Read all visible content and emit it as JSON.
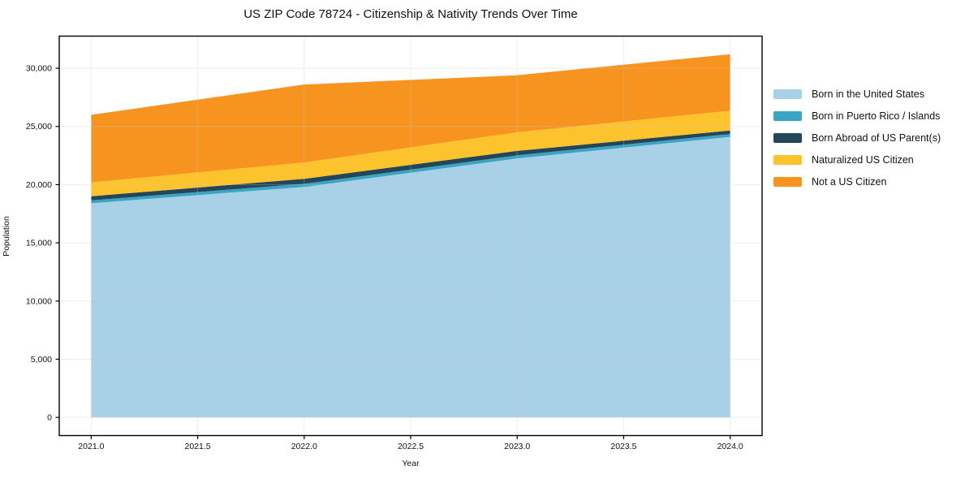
{
  "title": "US ZIP Code 78724 - Citizenship & Nativity Trends Over Time",
  "chart_data": {
    "type": "area",
    "stacked": true,
    "title": "US ZIP Code 78724 - Citizenship & Nativity Trends Over Time",
    "xlabel": "Year",
    "ylabel": "Population",
    "x": [
      2021,
      2022,
      2023,
      2024
    ],
    "series": [
      {
        "name": "Born in the United States",
        "color": "#a8d1e7",
        "values": [
          18400,
          19800,
          22250,
          24100
        ]
      },
      {
        "name": "Born in Puerto Rico / Islands",
        "color": "#3aa5c2",
        "values": [
          250,
          270,
          270,
          250
        ]
      },
      {
        "name": "Born Abroad of US Parent(s)",
        "color": "#24465a",
        "values": [
          350,
          430,
          380,
          300
        ]
      },
      {
        "name": "Naturalized US Citizen",
        "color": "#fcc32d",
        "values": [
          1200,
          1400,
          1600,
          1700
        ]
      },
      {
        "name": "Not a US Citizen",
        "color": "#f79420",
        "values": [
          5800,
          6700,
          4900,
          4850
        ]
      }
    ],
    "stack_totals": [
      26000,
      28600,
      29400,
      31200
    ],
    "xlim": [
      2020.85,
      2024.15
    ],
    "ylim": [
      -1560,
      32760
    ],
    "x_ticks": {
      "values": [
        2021,
        2021.5,
        2022,
        2022.5,
        2023,
        2023.5,
        2024
      ],
      "labels": [
        "2021.0",
        "2021.5",
        "2022.0",
        "2022.5",
        "2023.0",
        "2023.5",
        "2024.0"
      ]
    },
    "y_ticks": {
      "values": [
        0,
        5000,
        10000,
        15000,
        20000,
        25000,
        30000
      ],
      "labels": [
        "0",
        "5,000",
        "10,000",
        "15,000",
        "20,000",
        "25,000",
        "30,000"
      ]
    },
    "grid": true,
    "legend_position": "right"
  },
  "colors": {
    "spine": "#000000",
    "grid": "rgba(200,200,200,0.32)",
    "text": "#111111",
    "background": "#ffffff"
  }
}
